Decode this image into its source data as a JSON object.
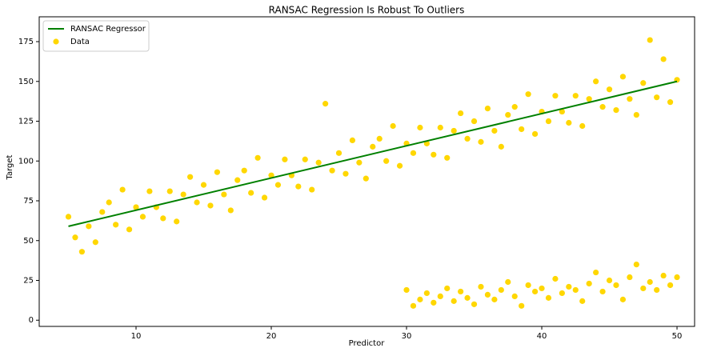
{
  "chart_data": {
    "type": "scatter",
    "title": "RANSAC Regression Is Robust To Outliers",
    "xlabel": "Predictor",
    "ylabel": "Target",
    "xlim": [
      2.84,
      51.3
    ],
    "ylim": [
      -3.9,
      190.6
    ],
    "xticks": [
      10,
      20,
      30,
      40,
      50
    ],
    "yticks": [
      0,
      25,
      50,
      75,
      100,
      125,
      150,
      175
    ],
    "legend": "upper left",
    "series": [
      {
        "name": "RANSAC Regressor",
        "type": "line",
        "color": "#008000",
        "x": [
          5,
          50
        ],
        "values": [
          59,
          150
        ]
      },
      {
        "name": "Data",
        "type": "scatter",
        "color": "#ffd700",
        "x": [
          5,
          5.5,
          6,
          6.5,
          7,
          7.5,
          8,
          8.5,
          9,
          9.5,
          10,
          10.5,
          11,
          11.5,
          12,
          12.5,
          13,
          13.5,
          14,
          14.5,
          15,
          15.5,
          16,
          16.5,
          17,
          17.5,
          18,
          18.5,
          19,
          19.5,
          20,
          20.5,
          21,
          21.5,
          22,
          22.5,
          23,
          23.5,
          24,
          24.5,
          25,
          25.5,
          26,
          26.5,
          27,
          27.5,
          28,
          28.5,
          29,
          29.5,
          30,
          30.5,
          31,
          31.5,
          32,
          32.5,
          33,
          33.5,
          34,
          34.5,
          35,
          35.5,
          36,
          36.5,
          37,
          37.5,
          38,
          38.5,
          39,
          39.5,
          40,
          40.5,
          41,
          41.5,
          42,
          42.5,
          43,
          43.5,
          44,
          44.5,
          45,
          45.5,
          46,
          46.5,
          47,
          47.5,
          48,
          48.5,
          49,
          49.5,
          50,
          30,
          30.5,
          31,
          31.5,
          32,
          32.5,
          33,
          33.5,
          34,
          34.5,
          35,
          35.5,
          36,
          36.5,
          37,
          37.5,
          38,
          38.5,
          39,
          39.5,
          40,
          40.5,
          41,
          41.5,
          42,
          42.5,
          43,
          43.5,
          44,
          44.5,
          45,
          45.5,
          46,
          46.5,
          47,
          47.5,
          48,
          48.5,
          49,
          49.5,
          50
        ],
        "values": [
          65,
          52,
          43,
          59,
          49,
          68,
          74,
          60,
          82,
          57,
          71,
          65,
          81,
          71,
          64,
          81,
          62,
          79,
          90,
          74,
          85,
          72,
          93,
          79,
          69,
          88,
          94,
          80,
          102,
          77,
          91,
          85,
          101,
          91,
          84,
          101,
          82,
          99,
          136,
          94,
          105,
          92,
          113,
          99,
          89,
          109,
          114,
          100,
          122,
          97,
          111,
          105,
          121,
          111,
          104,
          121,
          102,
          119,
          130,
          114,
          125,
          112,
          133,
          119,
          109,
          129,
          134,
          120,
          142,
          117,
          131,
          125,
          141,
          131,
          124,
          141,
          122,
          139,
          150,
          134,
          145,
          132,
          153,
          139,
          129,
          149,
          176,
          140,
          164,
          137,
          151,
          19,
          9,
          13,
          17,
          11,
          15,
          20,
          12,
          18,
          14,
          10,
          21,
          16,
          13,
          19,
          24,
          15,
          9,
          22,
          18,
          20,
          14,
          26,
          17,
          21,
          19,
          12,
          23,
          30,
          18,
          25,
          22,
          13,
          27,
          35,
          20,
          24,
          19,
          28,
          22,
          27
        ]
      }
    ]
  }
}
